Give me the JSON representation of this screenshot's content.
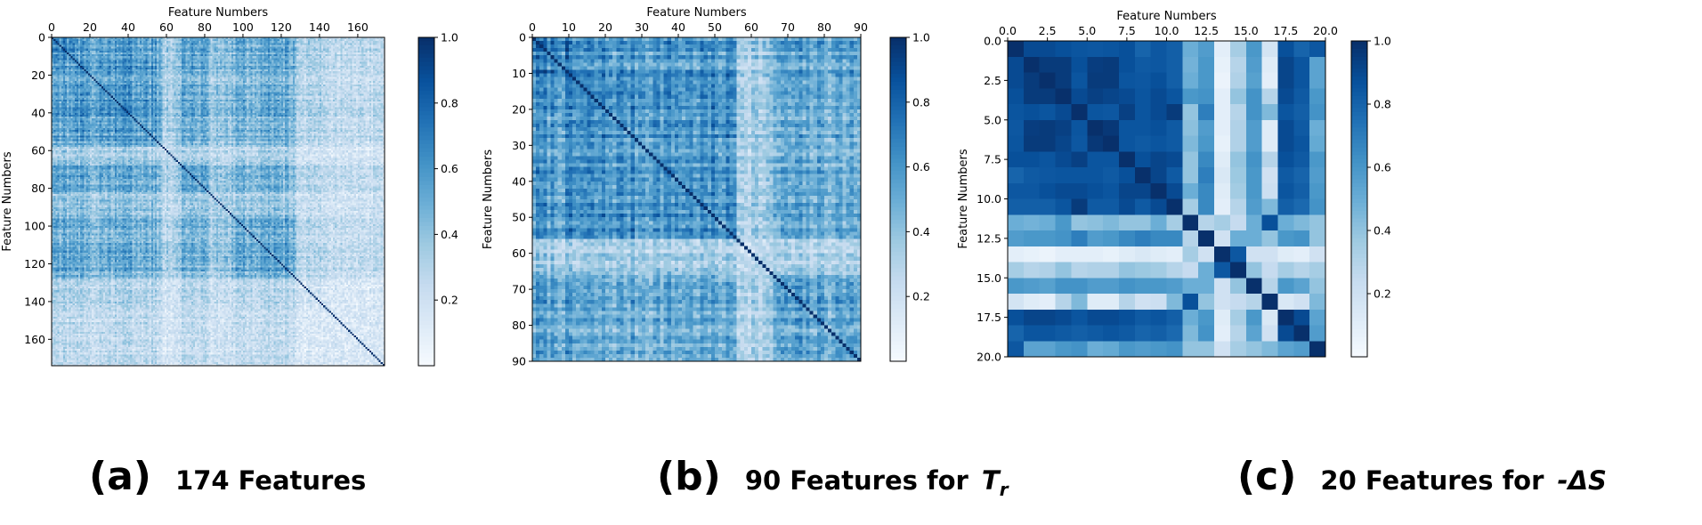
{
  "panels": [
    {
      "caption_letter": "(a)",
      "caption_text": "174 Features",
      "caption_symbol": "",
      "caption_subscript": "",
      "chart_data": {
        "type": "heatmap",
        "n": 174,
        "title": "",
        "xlabel": "Feature Numbers",
        "ylabel": "Feature Numbers",
        "xlim": [
          0,
          174
        ],
        "ylim": [
          0,
          174
        ],
        "x_ticks": [
          0,
          20,
          40,
          60,
          80,
          100,
          120,
          140,
          160
        ],
        "y_ticks": [
          0,
          20,
          40,
          60,
          80,
          100,
          120,
          140,
          160
        ],
        "x_tick_labels": [
          "0",
          "20",
          "40",
          "60",
          "80",
          "100",
          "120",
          "140",
          "160"
        ],
        "y_tick_labels": [
          "0",
          "20",
          "40",
          "60",
          "80",
          "100",
          "120",
          "140",
          "160"
        ],
        "colorbar": {
          "min": 0,
          "max": 1,
          "ticks": [
            0.2,
            0.4,
            0.6,
            0.8,
            1.0
          ],
          "tick_labels": [
            "0.2",
            "0.4",
            "0.6",
            "0.8",
            "1.0"
          ],
          "cmap": "Blues"
        },
        "diagonal_value": 1.0,
        "seed": 1,
        "groups": [
          [
            0,
            12,
            0.82
          ],
          [
            12,
            58,
            0.68
          ],
          [
            58,
            66,
            0.28
          ],
          [
            66,
            82,
            0.6
          ],
          [
            82,
            94,
            0.38
          ],
          [
            94,
            128,
            0.62
          ],
          [
            128,
            142,
            0.22
          ],
          [
            142,
            174,
            0.18
          ]
        ]
      }
    },
    {
      "caption_letter": "(b)",
      "caption_text": "90 Features for",
      "caption_symbol": "T",
      "caption_subscript": "r",
      "chart_data": {
        "type": "heatmap",
        "n": 90,
        "title": "",
        "xlabel": "Feature Numbers",
        "ylabel": "Feature Numbers",
        "xlim": [
          0,
          90
        ],
        "ylim": [
          0,
          90
        ],
        "x_ticks": [
          0,
          10,
          20,
          30,
          40,
          50,
          60,
          70,
          80,
          90
        ],
        "y_ticks": [
          0,
          10,
          20,
          30,
          40,
          50,
          60,
          70,
          80,
          90
        ],
        "x_tick_labels": [
          "0",
          "10",
          "20",
          "30",
          "40",
          "50",
          "60",
          "70",
          "80",
          "90"
        ],
        "y_tick_labels": [
          "0",
          "10",
          "20",
          "30",
          "40",
          "50",
          "60",
          "70",
          "80",
          "90"
        ],
        "colorbar": {
          "min": 0,
          "max": 1,
          "ticks": [
            0.2,
            0.4,
            0.6,
            0.8,
            1.0
          ],
          "tick_labels": [
            "0.2",
            "0.4",
            "0.6",
            "0.8",
            "1.0"
          ],
          "cmap": "Blues"
        },
        "diagonal_value": 1.0,
        "seed": 7,
        "groups": [
          [
            0,
            10,
            0.85
          ],
          [
            10,
            56,
            0.72
          ],
          [
            56,
            66,
            0.3
          ],
          [
            66,
            90,
            0.62
          ]
        ]
      }
    },
    {
      "caption_letter": "(c)",
      "caption_text": "20 Features for",
      "caption_symbol": "-ΔS",
      "caption_subscript": "",
      "chart_data": {
        "type": "heatmap",
        "n": 20,
        "title": "",
        "xlabel": "Feature Numbers",
        "ylabel": "Feature Numbers",
        "xlim": [
          0,
          20
        ],
        "ylim": [
          0,
          20
        ],
        "x_ticks": [
          0,
          2.5,
          5,
          7.5,
          10,
          12.5,
          15,
          17.5,
          20
        ],
        "y_ticks": [
          0,
          2.5,
          5,
          7.5,
          10,
          12.5,
          15,
          17.5,
          20
        ],
        "x_tick_labels": [
          "0.0",
          "2.5",
          "5.0",
          "7.5",
          "10.0",
          "12.5",
          "15.0",
          "17.5",
          "20.0"
        ],
        "y_tick_labels": [
          "0.0",
          "2.5",
          "5.0",
          "7.5",
          "10.0",
          "12.5",
          "15.0",
          "17.5",
          "20.0"
        ],
        "colorbar": {
          "min": 0,
          "max": 1,
          "ticks": [
            0.2,
            0.4,
            0.6,
            0.8,
            1.0
          ],
          "tick_labels": [
            "0.2",
            "0.4",
            "0.6",
            "0.8",
            "1.0"
          ],
          "cmap": "Blues"
        },
        "diagonal_value": 1.0,
        "matrix": [
          [
            1.0,
            0.9,
            0.9,
            0.88,
            0.86,
            0.85,
            0.86,
            0.88,
            0.8,
            0.85,
            0.82,
            0.5,
            0.58,
            0.1,
            0.35,
            0.6,
            0.18,
            0.88,
            0.8,
            0.85
          ],
          [
            0.9,
            1.0,
            0.96,
            0.96,
            0.88,
            0.95,
            0.96,
            0.88,
            0.84,
            0.85,
            0.82,
            0.48,
            0.6,
            0.08,
            0.3,
            0.58,
            0.12,
            0.92,
            0.86,
            0.55
          ],
          [
            0.9,
            0.96,
            1.0,
            0.96,
            0.86,
            0.96,
            0.96,
            0.86,
            0.85,
            0.88,
            0.82,
            0.5,
            0.6,
            0.06,
            0.32,
            0.56,
            0.1,
            0.92,
            0.86,
            0.55
          ],
          [
            0.88,
            0.96,
            0.96,
            1.0,
            0.9,
            0.94,
            0.92,
            0.9,
            0.86,
            0.9,
            0.86,
            0.6,
            0.62,
            0.1,
            0.4,
            0.62,
            0.3,
            0.9,
            0.84,
            0.6
          ],
          [
            0.86,
            0.88,
            0.86,
            0.9,
            1.0,
            0.86,
            0.85,
            0.94,
            0.86,
            0.9,
            0.96,
            0.4,
            0.7,
            0.1,
            0.3,
            0.62,
            0.45,
            0.86,
            0.82,
            0.62
          ],
          [
            0.85,
            0.95,
            0.96,
            0.94,
            0.86,
            1.0,
            0.97,
            0.86,
            0.86,
            0.88,
            0.84,
            0.42,
            0.58,
            0.1,
            0.32,
            0.58,
            0.12,
            0.9,
            0.84,
            0.5
          ],
          [
            0.86,
            0.96,
            0.96,
            0.92,
            0.85,
            0.97,
            1.0,
            0.86,
            0.84,
            0.86,
            0.84,
            0.45,
            0.6,
            0.08,
            0.32,
            0.58,
            0.12,
            0.9,
            0.86,
            0.52
          ],
          [
            0.88,
            0.88,
            0.86,
            0.9,
            0.94,
            0.86,
            0.86,
            1.0,
            0.88,
            0.92,
            0.9,
            0.4,
            0.66,
            0.12,
            0.4,
            0.62,
            0.3,
            0.88,
            0.84,
            0.6
          ],
          [
            0.8,
            0.84,
            0.85,
            0.86,
            0.86,
            0.86,
            0.84,
            0.88,
            1.0,
            0.92,
            0.84,
            0.4,
            0.7,
            0.15,
            0.38,
            0.6,
            0.2,
            0.84,
            0.8,
            0.58
          ],
          [
            0.85,
            0.85,
            0.88,
            0.9,
            0.9,
            0.88,
            0.86,
            0.92,
            0.92,
            1.0,
            0.9,
            0.5,
            0.66,
            0.12,
            0.36,
            0.6,
            0.22,
            0.86,
            0.82,
            0.6
          ],
          [
            0.82,
            0.82,
            0.82,
            0.86,
            0.96,
            0.84,
            0.84,
            0.9,
            0.84,
            0.9,
            1.0,
            0.35,
            0.66,
            0.1,
            0.3,
            0.58,
            0.45,
            0.82,
            0.78,
            0.62
          ],
          [
            0.5,
            0.48,
            0.5,
            0.6,
            0.4,
            0.42,
            0.45,
            0.4,
            0.4,
            0.5,
            0.35,
            1.0,
            0.3,
            0.35,
            0.25,
            0.5,
            0.88,
            0.5,
            0.45,
            0.4
          ],
          [
            0.58,
            0.6,
            0.6,
            0.62,
            0.7,
            0.58,
            0.6,
            0.66,
            0.7,
            0.66,
            0.66,
            0.3,
            1.0,
            0.2,
            0.5,
            0.5,
            0.4,
            0.6,
            0.62,
            0.4
          ],
          [
            0.1,
            0.08,
            0.06,
            0.1,
            0.1,
            0.1,
            0.08,
            0.12,
            0.15,
            0.12,
            0.1,
            0.35,
            0.2,
            1.0,
            0.85,
            0.2,
            0.2,
            0.12,
            0.1,
            0.2
          ],
          [
            0.35,
            0.3,
            0.32,
            0.4,
            0.3,
            0.32,
            0.32,
            0.4,
            0.38,
            0.36,
            0.3,
            0.25,
            0.5,
            0.85,
            1.0,
            0.4,
            0.25,
            0.35,
            0.3,
            0.35
          ],
          [
            0.6,
            0.58,
            0.56,
            0.62,
            0.62,
            0.58,
            0.58,
            0.62,
            0.6,
            0.6,
            0.58,
            0.5,
            0.5,
            0.2,
            0.4,
            1.0,
            0.3,
            0.6,
            0.55,
            0.4
          ],
          [
            0.18,
            0.12,
            0.1,
            0.3,
            0.45,
            0.12,
            0.12,
            0.3,
            0.2,
            0.22,
            0.45,
            0.88,
            0.4,
            0.2,
            0.25,
            0.3,
            1.0,
            0.15,
            0.2,
            0.45
          ],
          [
            0.88,
            0.92,
            0.92,
            0.9,
            0.86,
            0.9,
            0.9,
            0.88,
            0.84,
            0.86,
            0.82,
            0.5,
            0.6,
            0.12,
            0.35,
            0.6,
            0.15,
            1.0,
            0.9,
            0.55
          ],
          [
            0.8,
            0.86,
            0.86,
            0.84,
            0.82,
            0.84,
            0.86,
            0.84,
            0.8,
            0.82,
            0.78,
            0.45,
            0.62,
            0.1,
            0.3,
            0.55,
            0.2,
            0.9,
            1.0,
            0.58
          ],
          [
            0.85,
            0.55,
            0.55,
            0.6,
            0.62,
            0.5,
            0.52,
            0.6,
            0.58,
            0.6,
            0.62,
            0.4,
            0.4,
            0.2,
            0.35,
            0.4,
            0.45,
            0.55,
            0.58,
            1.0
          ]
        ]
      }
    }
  ]
}
